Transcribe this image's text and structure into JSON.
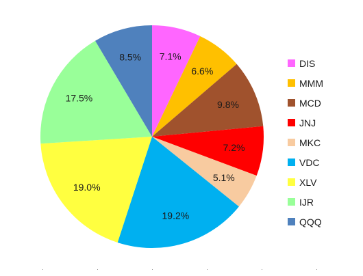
{
  "chart_data": {
    "type": "pie",
    "start_angle_deg": 0,
    "direction": "clockwise",
    "slices": [
      {
        "label": "DIS",
        "value": 7.1,
        "value_label": "7.1%",
        "color": "#ff66ff"
      },
      {
        "label": "MMM",
        "value": 6.6,
        "value_label": "6.6%",
        "color": "#ffc000"
      },
      {
        "label": "MCD",
        "value": 9.8,
        "value_label": "9.8%",
        "color": "#a0522d"
      },
      {
        "label": "JNJ",
        "value": 7.2,
        "value_label": "7.2%",
        "color": "#ff0000"
      },
      {
        "label": "MKC",
        "value": 5.1,
        "value_label": "5.1%",
        "color": "#f8cba0"
      },
      {
        "label": "VDC",
        "value": 19.2,
        "value_label": "19.2%",
        "color": "#00b0f0"
      },
      {
        "label": "XLV",
        "value": 19.0,
        "value_label": "19.0%",
        "color": "#ffff40"
      },
      {
        "label": "IJR",
        "value": 17.5,
        "value_label": "17.5%",
        "color": "#99ff99"
      },
      {
        "label": "QQQ",
        "value": 8.5,
        "value_label": "8.5%",
        "color": "#4f81bd"
      }
    ],
    "legend_position": "right"
  }
}
